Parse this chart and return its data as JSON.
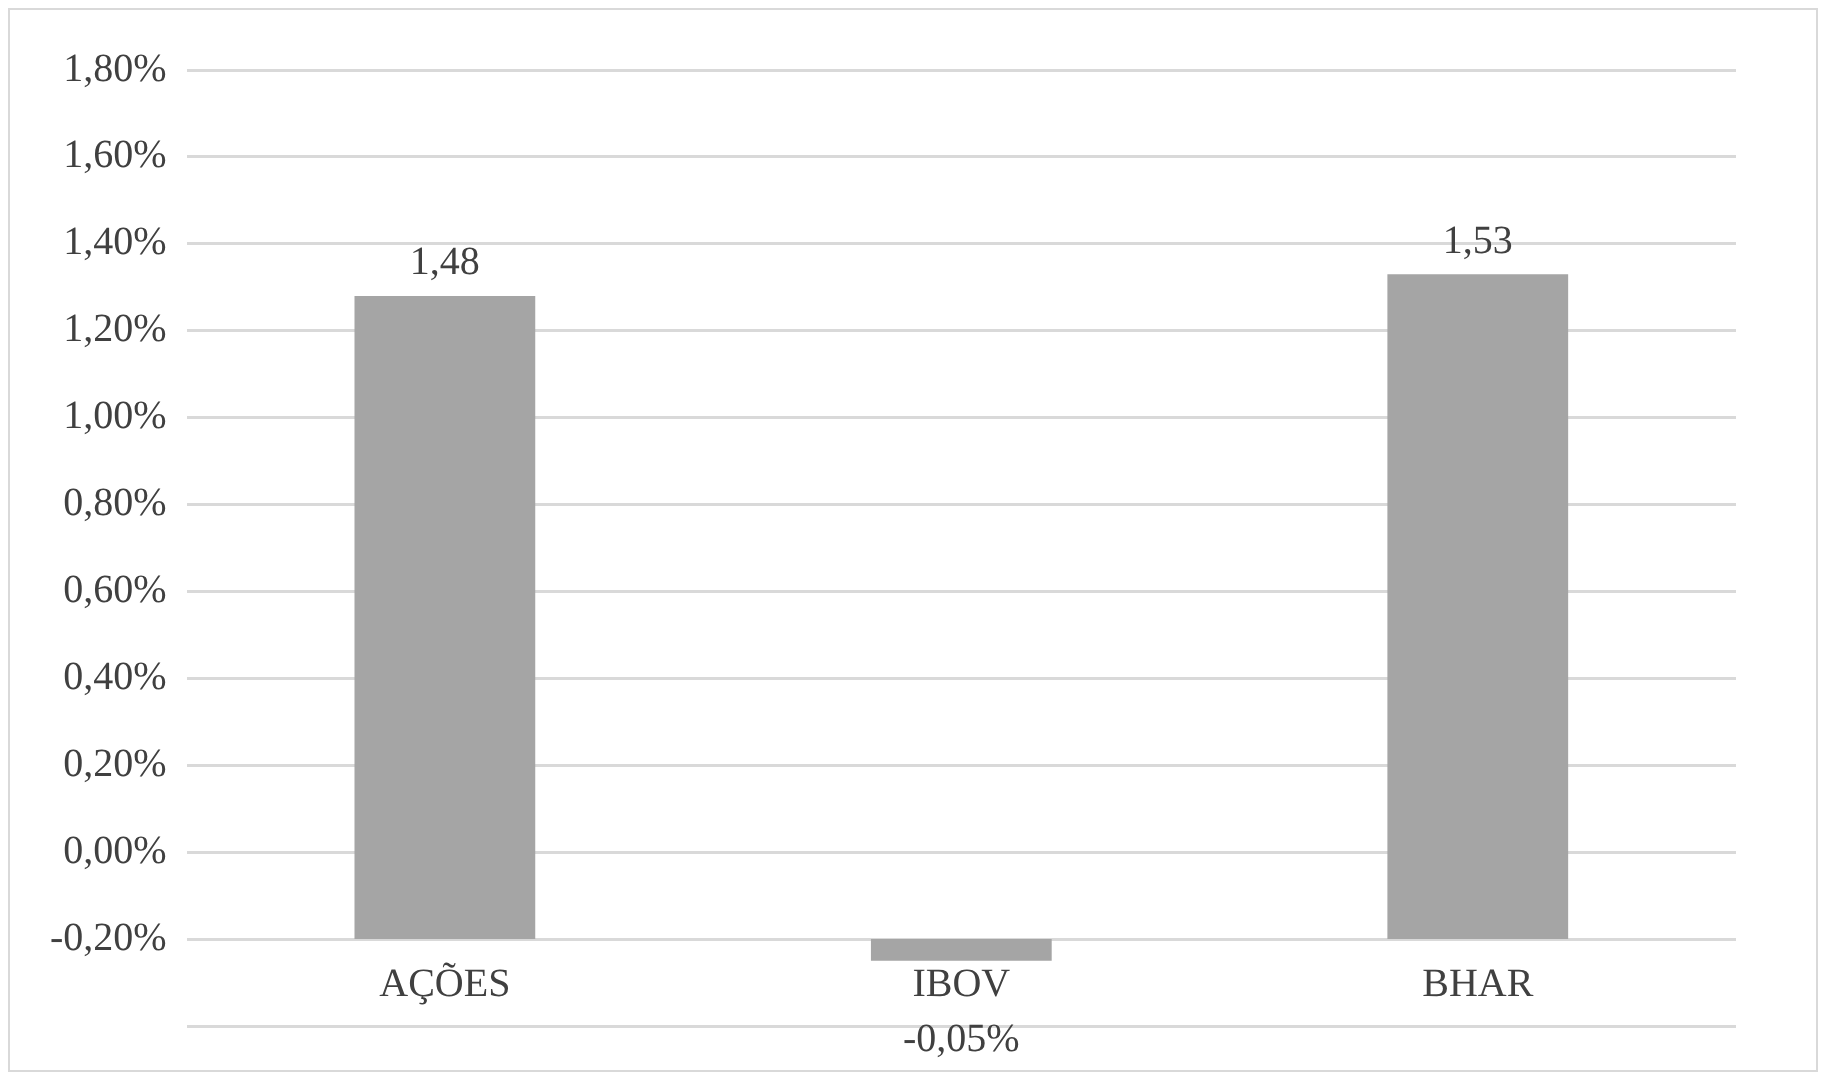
{
  "chart_data": {
    "type": "bar",
    "categories": [
      "AÇÕES",
      "IBOV",
      "BHAR"
    ],
    "values": [
      1.48,
      -0.05,
      1.53
    ],
    "base": [
      -0.2,
      -0.2,
      -0.2
    ],
    "color": "#a5a5a5",
    "value_labels": [
      "1,48",
      "-0,05%",
      "1,53"
    ],
    "ylim": [
      -0.4,
      1.8
    ],
    "yticks": [
      {
        "value": -0.4,
        "label": null
      },
      {
        "value": -0.2,
        "label": "-0,20%"
      },
      {
        "value": 0,
        "label": "0,00%"
      },
      {
        "value": 0.2,
        "label": "0,20%"
      },
      {
        "value": 0.4,
        "label": "0,40%"
      },
      {
        "value": 0.6,
        "label": "0,60%"
      },
      {
        "value": 0.8,
        "label": "0,80%"
      },
      {
        "value": 1,
        "label": "1,00%"
      },
      {
        "value": 1.2,
        "label": "1,20%"
      },
      {
        "value": 1.4,
        "label": "1,40%"
      },
      {
        "value": 1.6,
        "label": "1,60%"
      },
      {
        "value": 1.8,
        "label": "1,80%"
      }
    ],
    "grid": "y",
    "legend": false
  }
}
